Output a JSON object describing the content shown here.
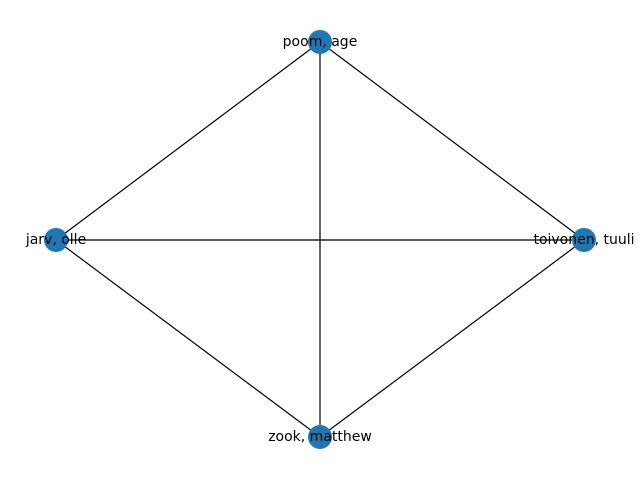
{
  "graph": {
    "node_color": "#1f77b4",
    "edge_color": "#000000",
    "nodes": [
      {
        "id": "poom",
        "label": "poom, age"
      },
      {
        "id": "jarv",
        "label": "jarv, olle"
      },
      {
        "id": "toivonen",
        "label": "toivonen, tuuli"
      },
      {
        "id": "zook",
        "label": "zook, matthew"
      }
    ],
    "edges": [
      [
        "poom",
        "jarv"
      ],
      [
        "poom",
        "toivonen"
      ],
      [
        "poom",
        "zook"
      ],
      [
        "jarv",
        "toivonen"
      ],
      [
        "jarv",
        "zook"
      ],
      [
        "toivonen",
        "zook"
      ]
    ]
  }
}
